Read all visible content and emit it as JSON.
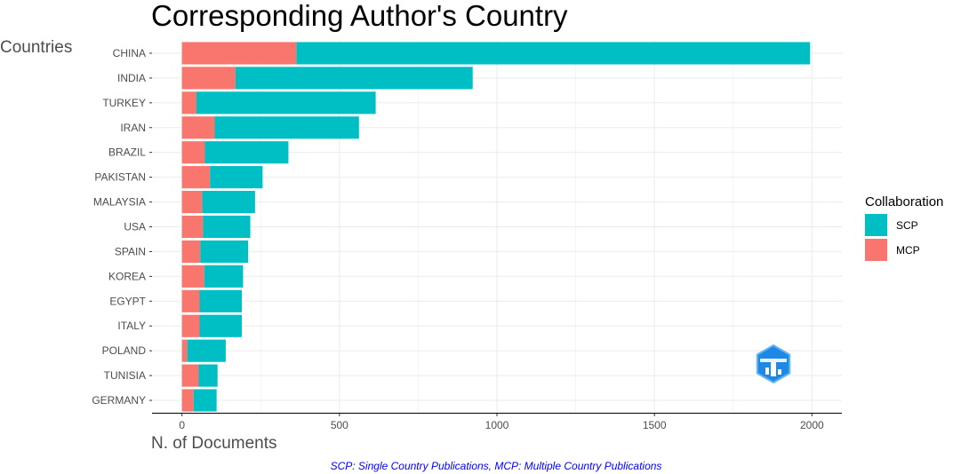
{
  "chart_data": {
    "type": "bar",
    "orientation": "horizontal",
    "stacked": true,
    "title": "Corresponding Author's Country",
    "ylabel": "Countries",
    "xlabel": "N. of Documents",
    "categories": [
      "CHINA",
      "INDIA",
      "TURKEY",
      "IRAN",
      "BRAZIL",
      "PAKISTAN",
      "MALAYSIA",
      "USA",
      "SPAIN",
      "KOREA",
      "EGYPT",
      "ITALY",
      "POLAND",
      "TUNISIA",
      "GERMANY"
    ],
    "series": [
      {
        "name": "MCP",
        "color": "#f8766d",
        "values": [
          363,
          170,
          46,
          104,
          73,
          89,
          64,
          67,
          58,
          71,
          56,
          56,
          17,
          53,
          37
        ]
      },
      {
        "name": "SCP",
        "color": "#00bfc4",
        "values": [
          1631,
          753,
          569,
          458,
          265,
          167,
          168,
          150,
          152,
          123,
          134,
          134,
          122,
          60,
          73
        ]
      }
    ],
    "xlim": [
      -95,
      2095
    ],
    "xticks": [
      0,
      500,
      1000,
      1500,
      2000
    ],
    "grid": true,
    "legend": {
      "title": "Collaboration",
      "position": "right",
      "entries": [
        {
          "label": "SCP",
          "color": "#00bfc4"
        },
        {
          "label": "MCP",
          "color": "#f8766d"
        }
      ]
    },
    "caption": "SCP: Single Country Publications, MCP: Multiple Country Publications",
    "logo_icon": "bibliometrix-logo"
  }
}
